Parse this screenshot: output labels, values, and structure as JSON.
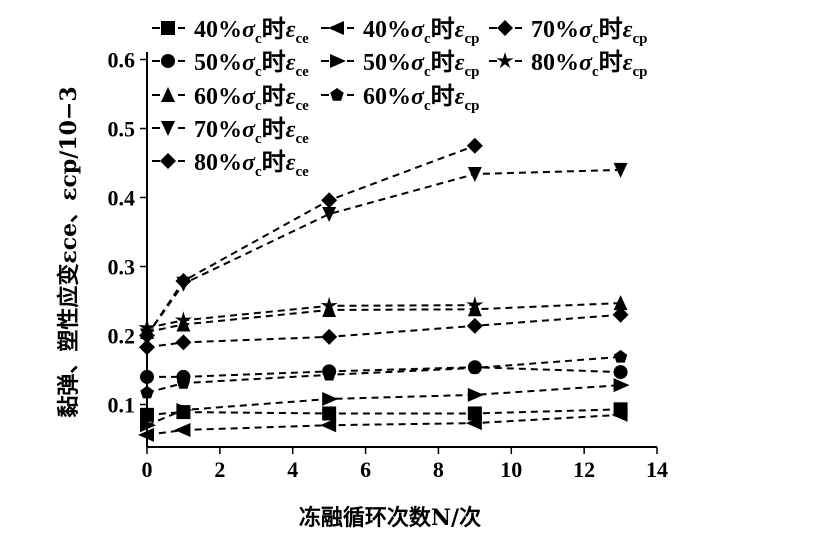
{
  "chart_data": {
    "type": "line",
    "title": "",
    "xlabel": "冻融循环次数N/次",
    "ylabel": "黏弹、塑性应变εce、εcp/10−3",
    "xlim": [
      0,
      14
    ],
    "ylim": [
      0.04,
      0.6
    ],
    "xticks": [
      "0",
      "2",
      "4",
      "6",
      "8",
      "10",
      "12",
      "14"
    ],
    "yticks": [
      "0.1",
      "0.2",
      "0.3",
      "0.4",
      "0.5",
      "0.6"
    ],
    "grid": false,
    "legend_placement": "top",
    "legend_tokens": {
      "sigma": "σ",
      "sigma_sub": "c",
      "shi": "时",
      "eps": "ε"
    },
    "x": [
      0,
      1,
      5,
      9,
      13
    ],
    "series": [
      {
        "name": "40%σc时εce",
        "pct": "40%",
        "sub": "ce",
        "marker": "square",
        "values": [
          0.085,
          0.089,
          0.087,
          0.087,
          0.093
        ]
      },
      {
        "name": "50%σc时εce",
        "pct": "50%",
        "sub": "ce",
        "marker": "circle",
        "values": [
          0.14,
          0.14,
          0.148,
          0.154,
          0.147
        ]
      },
      {
        "name": "60%σc时εce",
        "pct": "60%",
        "sub": "ce",
        "marker": "triangle-up",
        "values": [
          0.205,
          0.216,
          0.237,
          0.238,
          0.247
        ]
      },
      {
        "name": "70%σc时εce",
        "pct": "70%",
        "sub": "ce",
        "marker": "triangle-down",
        "values": [
          0.2,
          0.275,
          0.376,
          0.434,
          0.44
        ]
      },
      {
        "name": "80%σc时εce",
        "pct": "80%",
        "sub": "ce",
        "marker": "diamond",
        "values": [
          0.2,
          0.279,
          0.396,
          0.475,
          null
        ]
      },
      {
        "name": "40%σc时εcp",
        "pct": "40%",
        "sub": "cp",
        "marker": "triangle-left",
        "values": [
          0.056,
          0.063,
          0.07,
          0.073,
          0.085
        ]
      },
      {
        "name": "50%σc时εcp",
        "pct": "50%",
        "sub": "cp",
        "marker": "triangle-right",
        "values": [
          0.07,
          0.092,
          0.108,
          0.114,
          0.128
        ]
      },
      {
        "name": "60%σc时εcp",
        "pct": "60%",
        "sub": "cp",
        "marker": "pentagon",
        "values": [
          0.117,
          0.131,
          0.143,
          0.153,
          0.169
        ]
      },
      {
        "name": "70%σc时εcp",
        "pct": "70%",
        "sub": "cp",
        "marker": "diamond",
        "values": [
          0.183,
          0.19,
          0.198,
          0.214,
          0.23
        ]
      },
      {
        "name": "80%σc时εcp",
        "pct": "80%",
        "sub": "cp",
        "marker": "star",
        "values": [
          0.211,
          0.222,
          0.243,
          0.244,
          null
        ]
      }
    ]
  }
}
